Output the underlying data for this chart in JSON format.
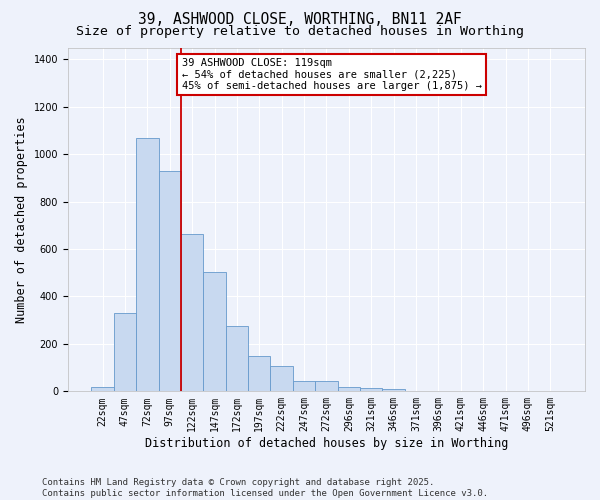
{
  "title_line1": "39, ASHWOOD CLOSE, WORTHING, BN11 2AF",
  "title_line2": "Size of property relative to detached houses in Worthing",
  "xlabel": "Distribution of detached houses by size in Worthing",
  "ylabel": "Number of detached properties",
  "bar_color": "#c8d9f0",
  "bar_edge_color": "#6699cc",
  "background_color": "#eef2fb",
  "grid_color": "#ffffff",
  "annotation_text": "39 ASHWOOD CLOSE: 119sqm\n← 54% of detached houses are smaller (2,225)\n45% of semi-detached houses are larger (1,875) →",
  "annotation_box_color": "#ffffff",
  "annotation_box_edge_color": "#cc0000",
  "vline_x": 3.5,
  "vline_color": "#cc0000",
  "categories": [
    "22sqm",
    "47sqm",
    "72sqm",
    "97sqm",
    "122sqm",
    "147sqm",
    "172sqm",
    "197sqm",
    "222sqm",
    "247sqm",
    "272sqm",
    "296sqm",
    "321sqm",
    "346sqm",
    "371sqm",
    "396sqm",
    "421sqm",
    "446sqm",
    "471sqm",
    "496sqm",
    "521sqm"
  ],
  "values": [
    18,
    330,
    1070,
    930,
    665,
    505,
    275,
    150,
    105,
    45,
    45,
    20,
    15,
    10,
    0,
    0,
    0,
    0,
    0,
    0,
    0
  ],
  "ylim": [
    0,
    1450
  ],
  "yticks": [
    0,
    200,
    400,
    600,
    800,
    1000,
    1200,
    1400
  ],
  "footer_text": "Contains HM Land Registry data © Crown copyright and database right 2025.\nContains public sector information licensed under the Open Government Licence v3.0.",
  "title_fontsize": 10.5,
  "subtitle_fontsize": 9.5,
  "axis_label_fontsize": 8.5,
  "tick_fontsize": 7,
  "annotation_fontsize": 7.5,
  "footer_fontsize": 6.5
}
